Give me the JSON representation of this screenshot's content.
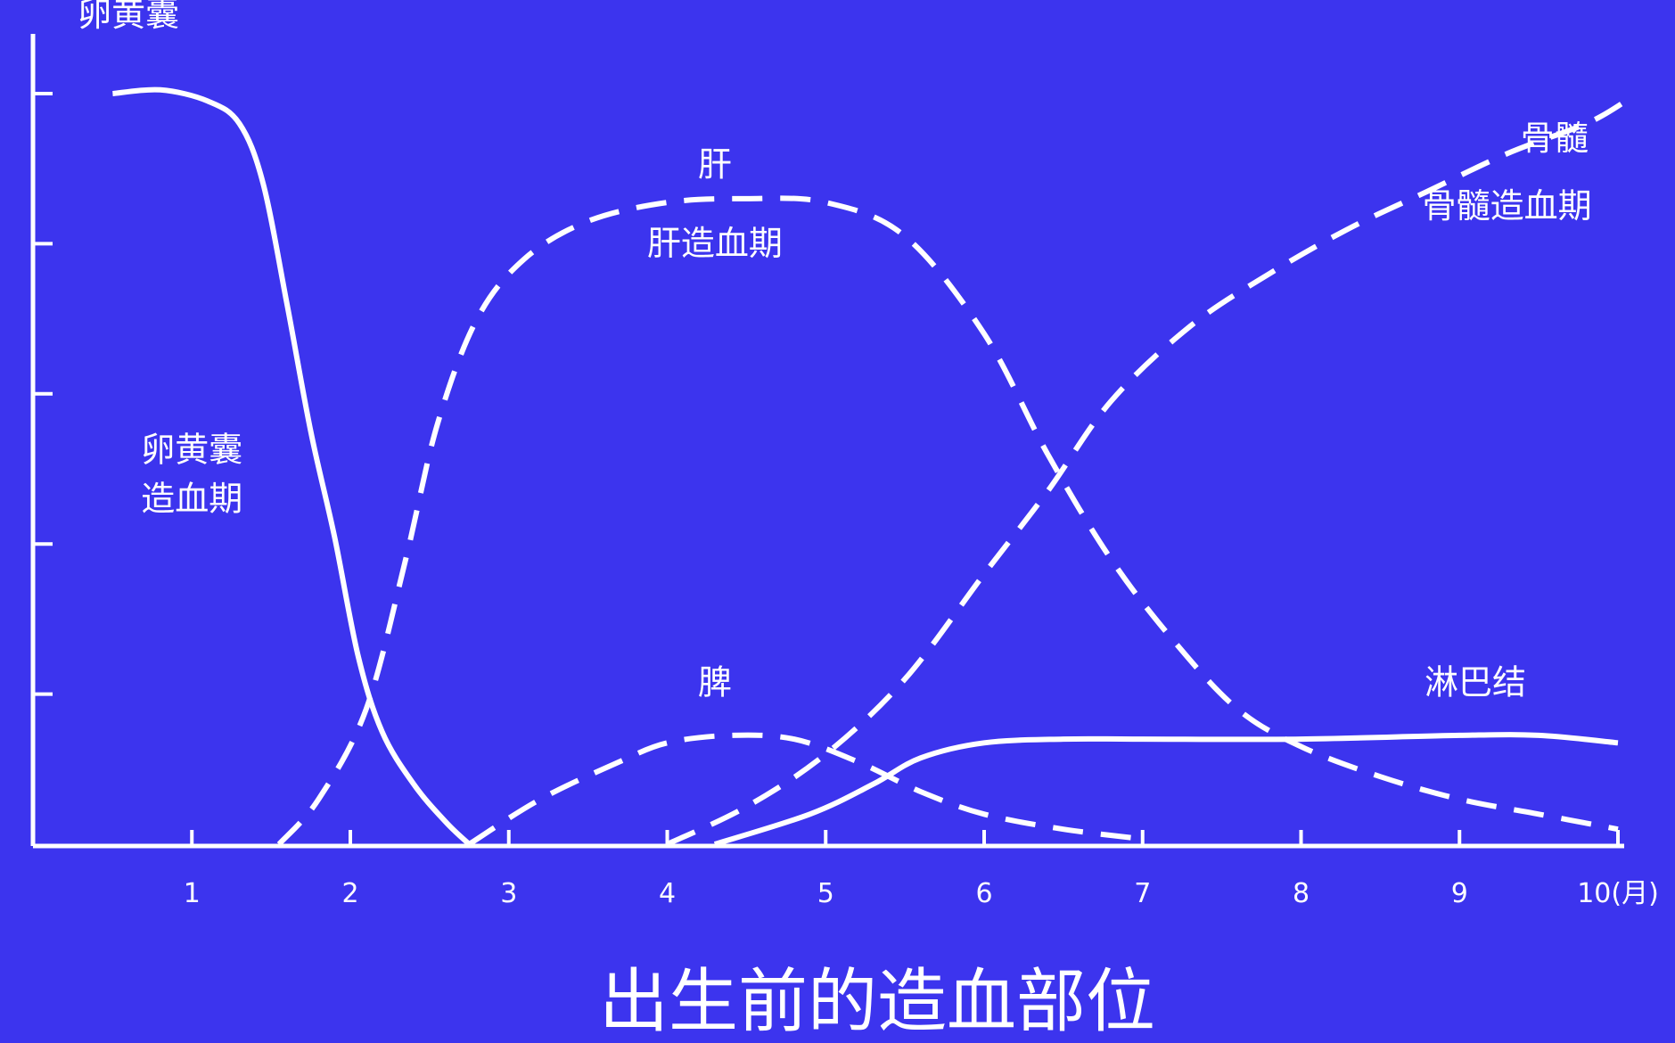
{
  "chart_data": {
    "type": "line",
    "title": "出生前的造血部位",
    "xlabel": "",
    "ylabel": "",
    "xlim": [
      0,
      10.5
    ],
    "ylim": [
      0,
      100
    ],
    "y_ticks_labeled": false,
    "grid": false,
    "legend": "none",
    "x_ticks": [
      {
        "value": 1,
        "label": "1"
      },
      {
        "value": 2,
        "label": "2"
      },
      {
        "value": 3,
        "label": "3"
      },
      {
        "value": 4,
        "label": "4"
      },
      {
        "value": 5,
        "label": "5"
      },
      {
        "value": 6,
        "label": "6"
      },
      {
        "value": 7,
        "label": "7"
      },
      {
        "value": 8,
        "label": "8"
      },
      {
        "value": 9,
        "label": "9"
      },
      {
        "value": 10,
        "label": "10(月)"
      }
    ],
    "y_tick_values": [
      20,
      40,
      60,
      80,
      100
    ],
    "colors": {
      "background": "#3c34ee",
      "foreground": "#ffffff"
    },
    "series": [
      {
        "name": "卵黄囊",
        "style": "solid",
        "points": [
          [
            0.5,
            100
          ],
          [
            0.8,
            100.5
          ],
          [
            1.1,
            99
          ],
          [
            1.3,
            96
          ],
          [
            1.45,
            88
          ],
          [
            1.6,
            72
          ],
          [
            1.75,
            55
          ],
          [
            1.9,
            41
          ],
          [
            2.05,
            25
          ],
          [
            2.2,
            15
          ],
          [
            2.4,
            8
          ],
          [
            2.6,
            3
          ],
          [
            2.75,
            0
          ]
        ]
      },
      {
        "name": "肝",
        "style": "dashed",
        "points": [
          [
            1.55,
            0
          ],
          [
            1.8,
            6
          ],
          [
            2.1,
            18
          ],
          [
            2.35,
            38
          ],
          [
            2.55,
            56
          ],
          [
            2.8,
            70
          ],
          [
            3.1,
            78
          ],
          [
            3.5,
            83
          ],
          [
            4.0,
            85.5
          ],
          [
            4.5,
            86
          ],
          [
            5.0,
            85.5
          ],
          [
            5.5,
            81
          ],
          [
            6.0,
            68
          ],
          [
            6.4,
            52
          ],
          [
            6.8,
            38
          ],
          [
            7.2,
            27
          ],
          [
            7.6,
            18
          ],
          [
            8.0,
            13
          ],
          [
            8.5,
            9
          ],
          [
            9.0,
            6
          ],
          [
            9.5,
            4
          ],
          [
            10.0,
            2
          ]
        ]
      },
      {
        "name": "骨髓",
        "style": "dashed",
        "points": [
          [
            4.0,
            0
          ],
          [
            4.5,
            5
          ],
          [
            5.0,
            12
          ],
          [
            5.5,
            22
          ],
          [
            6.0,
            36
          ],
          [
            6.4,
            47
          ],
          [
            6.8,
            59
          ],
          [
            7.3,
            69
          ],
          [
            7.8,
            76
          ],
          [
            8.3,
            82
          ],
          [
            8.8,
            87
          ],
          [
            9.3,
            92
          ],
          [
            9.8,
            96
          ],
          [
            10.05,
            99
          ]
        ]
      },
      {
        "name": "脾",
        "style": "dashed",
        "points": [
          [
            2.75,
            0
          ],
          [
            3.2,
            6
          ],
          [
            3.7,
            11
          ],
          [
            4.0,
            13.5
          ],
          [
            4.4,
            14.5
          ],
          [
            4.8,
            14
          ],
          [
            5.2,
            11
          ],
          [
            5.6,
            7
          ],
          [
            6.0,
            4
          ],
          [
            6.5,
            2
          ],
          [
            7.0,
            0.7
          ]
        ]
      },
      {
        "name": "淋巴结",
        "style": "solid",
        "points": [
          [
            4.3,
            0
          ],
          [
            4.9,
            4
          ],
          [
            5.3,
            8
          ],
          [
            5.6,
            11.5
          ],
          [
            6.0,
            13.5
          ],
          [
            6.5,
            14
          ],
          [
            7.0,
            14
          ],
          [
            8.0,
            14
          ],
          [
            9.0,
            14.5
          ],
          [
            9.5,
            14.5
          ],
          [
            10.0,
            13.5
          ]
        ]
      }
    ],
    "annotations": [
      {
        "id": "yolk-sac-label",
        "text": "卵黄囊",
        "x": 0.6,
        "y": 109
      },
      {
        "id": "yolk-sac-phase-1",
        "text": "卵黄囊",
        "x": 1.0,
        "y": 51
      },
      {
        "id": "yolk-sac-phase-2",
        "text": "造血期",
        "x": 1.0,
        "y": 44.5
      },
      {
        "id": "liver-label",
        "text": "肝",
        "x": 4.3,
        "y": 89
      },
      {
        "id": "liver-phase",
        "text": "肝造血期",
        "x": 4.3,
        "y": 78.5
      },
      {
        "id": "bone-marrow-label",
        "text": "骨髓",
        "x": 9.6,
        "y": 92.5
      },
      {
        "id": "bone-marrow-phase",
        "text": "骨髓造血期",
        "x": 9.3,
        "y": 83.5
      },
      {
        "id": "spleen-label",
        "text": "脾",
        "x": 4.3,
        "y": 20
      },
      {
        "id": "lymph-node-label",
        "text": "淋巴结",
        "x": 9.1,
        "y": 20
      }
    ]
  }
}
